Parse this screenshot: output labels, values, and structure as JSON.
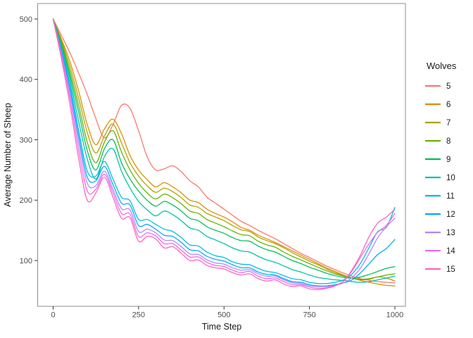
{
  "chart_data": {
    "type": "line",
    "title": "",
    "xlabel": "Time Step",
    "ylabel": "Average Number of Sheep",
    "legend_title": "Wolves",
    "legend_position": "right",
    "grid": false,
    "background": "#FFFFFF",
    "panel_border_color": "#8C8C8C",
    "tick_color": "#333333",
    "tick_label_color": "#4D4D4D",
    "text_color": "#1A1A1A",
    "xlim": [
      -45,
      1031
    ],
    "ylim": [
      24,
      526
    ],
    "x_ticks": [
      0,
      250,
      500,
      750,
      1000
    ],
    "y_ticks": [
      100,
      200,
      300,
      400,
      500
    ],
    "x": [
      0,
      25,
      50,
      75,
      100,
      125,
      150,
      175,
      200,
      225,
      250,
      275,
      300,
      325,
      350,
      375,
      400,
      425,
      450,
      475,
      500,
      525,
      550,
      575,
      600,
      625,
      650,
      675,
      700,
      725,
      750,
      775,
      800,
      825,
      850,
      875,
      900,
      925,
      950,
      975,
      1000
    ],
    "series": [
      {
        "name": "5",
        "color": "#F8766D",
        "values": [
          500,
          472,
          443,
          410,
          375,
          335,
          303,
          325,
          357,
          352,
          315,
          272,
          250,
          252,
          257,
          247,
          232,
          222,
          205,
          195,
          185,
          175,
          165,
          158,
          150,
          143,
          136,
          128,
          120,
          112,
          105,
          98,
          91,
          85,
          79,
          74,
          70,
          67,
          65,
          64,
          63
        ]
      },
      {
        "name": "6",
        "color": "#DB8E00",
        "values": [
          500,
          466,
          428,
          380,
          325,
          292,
          318,
          334,
          310,
          274,
          250,
          234,
          222,
          229,
          222,
          212,
          200,
          196,
          185,
          178,
          172,
          164,
          155,
          150,
          142,
          136,
          130,
          123,
          116,
          109,
          102,
          95,
          88,
          82,
          76,
          71,
          67,
          64,
          61,
          59,
          58
        ]
      },
      {
        "name": "7",
        "color": "#AEA200",
        "values": [
          500,
          463,
          420,
          368,
          312,
          278,
          306,
          326,
          295,
          262,
          240,
          224,
          213,
          220,
          214,
          204,
          192,
          188,
          178,
          172,
          166,
          158,
          151,
          148,
          139,
          133,
          128,
          121,
          113,
          106,
          99,
          93,
          86,
          80,
          75,
          71,
          68,
          69,
          73,
          71,
          66
        ]
      },
      {
        "name": "8",
        "color": "#64B200",
        "values": [
          500,
          460,
          412,
          356,
          296,
          262,
          296,
          315,
          280,
          250,
          228,
          212,
          202,
          210,
          204,
          194,
          182,
          178,
          168,
          162,
          156,
          149,
          143,
          141,
          132,
          126,
          122,
          114,
          107,
          101,
          95,
          89,
          83,
          78,
          74,
          71,
          69,
          70,
          73,
          76,
          78
        ]
      },
      {
        "name": "9",
        "color": "#00BD5C",
        "values": [
          500,
          456,
          405,
          345,
          282,
          250,
          285,
          300,
          262,
          235,
          215,
          200,
          190,
          198,
          192,
          182,
          170,
          166,
          156,
          150,
          145,
          138,
          133,
          132,
          124,
          118,
          114,
          107,
          100,
          95,
          89,
          84,
          79,
          75,
          72,
          71,
          73,
          77,
          82,
          87,
          90
        ]
      },
      {
        "name": "10",
        "color": "#00C1A7",
        "values": [
          500,
          452,
          398,
          330,
          268,
          235,
          272,
          285,
          248,
          220,
          198,
          184,
          174,
          182,
          176,
          166,
          154,
          150,
          140,
          134,
          128,
          121,
          116,
          114,
          107,
          101,
          97,
          91,
          85,
          81,
          76,
          72,
          70,
          68,
          67,
          65,
          64,
          65,
          68,
          71,
          74
        ]
      },
      {
        "name": "11",
        "color": "#00BADE",
        "values": [
          500,
          448,
          390,
          315,
          248,
          240,
          264,
          235,
          205,
          199,
          168,
          168,
          160,
          152,
          148,
          138,
          126,
          124,
          114,
          108,
          105,
          98,
          94,
          93,
          87,
          82,
          80,
          75,
          70,
          68,
          64,
          62,
          62,
          64,
          68,
          78,
          96,
          122,
          148,
          155,
          188
        ]
      },
      {
        "name": "12",
        "color": "#00A6FF",
        "values": [
          500,
          445,
          382,
          305,
          238,
          232,
          256,
          226,
          195,
          192,
          158,
          160,
          152,
          142,
          140,
          130,
          118,
          116,
          107,
          102,
          99,
          93,
          88,
          88,
          81,
          77,
          76,
          70,
          65,
          64,
          60,
          58,
          58,
          60,
          63,
          68,
          80,
          95,
          110,
          120,
          135
        ]
      },
      {
        "name": "13",
        "color": "#B385FF",
        "values": [
          500,
          442,
          375,
          295,
          228,
          224,
          248,
          218,
          186,
          184,
          148,
          152,
          146,
          134,
          133,
          123,
          111,
          110,
          101,
          96,
          94,
          88,
          84,
          85,
          78,
          74,
          74,
          68,
          63,
          62,
          58,
          57,
          57,
          59,
          63,
          72,
          88,
          112,
          138,
          156,
          170
        ]
      },
      {
        "name": "14",
        "color": "#EF67EB",
        "values": [
          500,
          438,
          366,
          282,
          215,
          218,
          243,
          212,
          178,
          177,
          140,
          146,
          141,
          128,
          128,
          117,
          106,
          106,
          97,
          92,
          90,
          84,
          80,
          82,
          74,
          70,
          71,
          65,
          60,
          60,
          56,
          54,
          55,
          59,
          66,
          83,
          106,
          128,
          147,
          158,
          178
        ]
      },
      {
        "name": "15",
        "color": "#FF63B6",
        "values": [
          500,
          432,
          355,
          268,
          200,
          212,
          238,
          205,
          170,
          171,
          132,
          140,
          136,
          121,
          123,
          112,
          100,
          101,
          92,
          88,
          86,
          80,
          76,
          78,
          70,
          66,
          68,
          61,
          57,
          58,
          53,
          52,
          54,
          58,
          66,
          85,
          110,
          140,
          162,
          172,
          185
        ]
      }
    ]
  }
}
